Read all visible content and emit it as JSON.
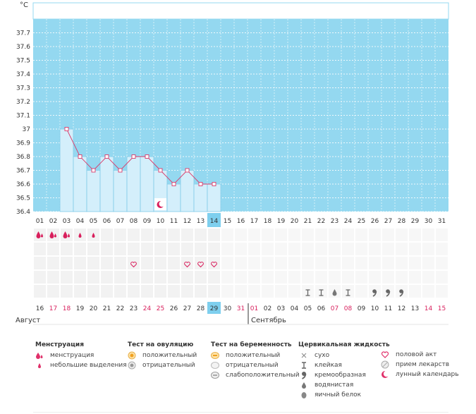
{
  "chart_data": {
    "type": "line+bar",
    "yunit": "°C",
    "ylim": [
      36.4,
      37.8
    ],
    "yticks": [
      "37.7",
      "37.6",
      "37.5",
      "37.4",
      "37.3",
      "37.2",
      "37.1",
      "37",
      "36.9",
      "36.8",
      "36.7",
      "36.6",
      "36.5",
      "36.4"
    ],
    "cycle_days": [
      "01",
      "02",
      "03",
      "04",
      "05",
      "06",
      "07",
      "08",
      "09",
      "10",
      "11",
      "12",
      "13",
      "14",
      "15",
      "16",
      "17",
      "18",
      "19",
      "20",
      "21",
      "22",
      "23",
      "24",
      "25",
      "26",
      "27",
      "28",
      "29",
      "30",
      "31"
    ],
    "current_day": "14",
    "temperature": {
      "days": [
        "03",
        "04",
        "05",
        "06",
        "07",
        "08",
        "09",
        "10",
        "11",
        "12",
        "13",
        "14"
      ],
      "values": [
        37.0,
        36.8,
        36.7,
        36.8,
        36.7,
        36.8,
        36.8,
        36.7,
        36.6,
        36.7,
        36.6,
        36.6
      ]
    },
    "lunar_marker_day": "10",
    "menstruation_row": [
      "heavy",
      "heavy",
      "heavy",
      "light",
      "light"
    ],
    "intercourse_days": [
      "08",
      "12",
      "13",
      "14"
    ],
    "mucus_row": {
      "21": "sticky",
      "22": "sticky",
      "23": "watery",
      "24": "sticky",
      "26": "creamy",
      "27": "creamy",
      "28": "creamy"
    },
    "calendar_dates": [
      "16",
      "17",
      "18",
      "19",
      "20",
      "21",
      "22",
      "23",
      "24",
      "25",
      "26",
      "27",
      "28",
      "29",
      "30",
      "31",
      "01",
      "02",
      "03",
      "04",
      "05",
      "06",
      "07",
      "08",
      "09",
      "10",
      "11",
      "12",
      "13",
      "14",
      "15"
    ],
    "calendar_date_colors": [
      "gray",
      "red",
      "red",
      "gray",
      "gray",
      "gray",
      "gray",
      "gray",
      "red",
      "red",
      "gray",
      "gray",
      "gray",
      "current",
      "gray",
      "red",
      "red",
      "gray",
      "gray",
      "gray",
      "gray",
      "gray",
      "red",
      "red",
      "gray",
      "gray",
      "gray",
      "gray",
      "gray",
      "red",
      "red"
    ],
    "month_left": "Август",
    "month_right": "Сентябрь",
    "colors": {
      "plot_bg": "#94d8f0",
      "bar_fill": "#d4effb",
      "bar_stroke": "#80cbe8",
      "line": "#d93a6a",
      "accent": "#d81f5c",
      "current_day_bg": "#7ecfee"
    }
  },
  "legend": {
    "menstruation": {
      "title": "Менструация",
      "items": [
        "менструация",
        "небольшие выделения"
      ]
    },
    "ovulation": {
      "title": "Тест на овуляцию",
      "items": [
        "положительный",
        "отрицательный"
      ]
    },
    "pregnancy": {
      "title": "Тест на беременность",
      "items": [
        "положительный",
        "отрицательный",
        "слабоположительный"
      ]
    },
    "mucus": {
      "title": "Цервикальная жидкость",
      "items": [
        "сухо",
        "клейкая",
        "кремообразная",
        "водянистая",
        "яичный белок"
      ]
    },
    "other": {
      "items": [
        "половой акт",
        "прием лекарств",
        "лунный календарь"
      ]
    }
  }
}
